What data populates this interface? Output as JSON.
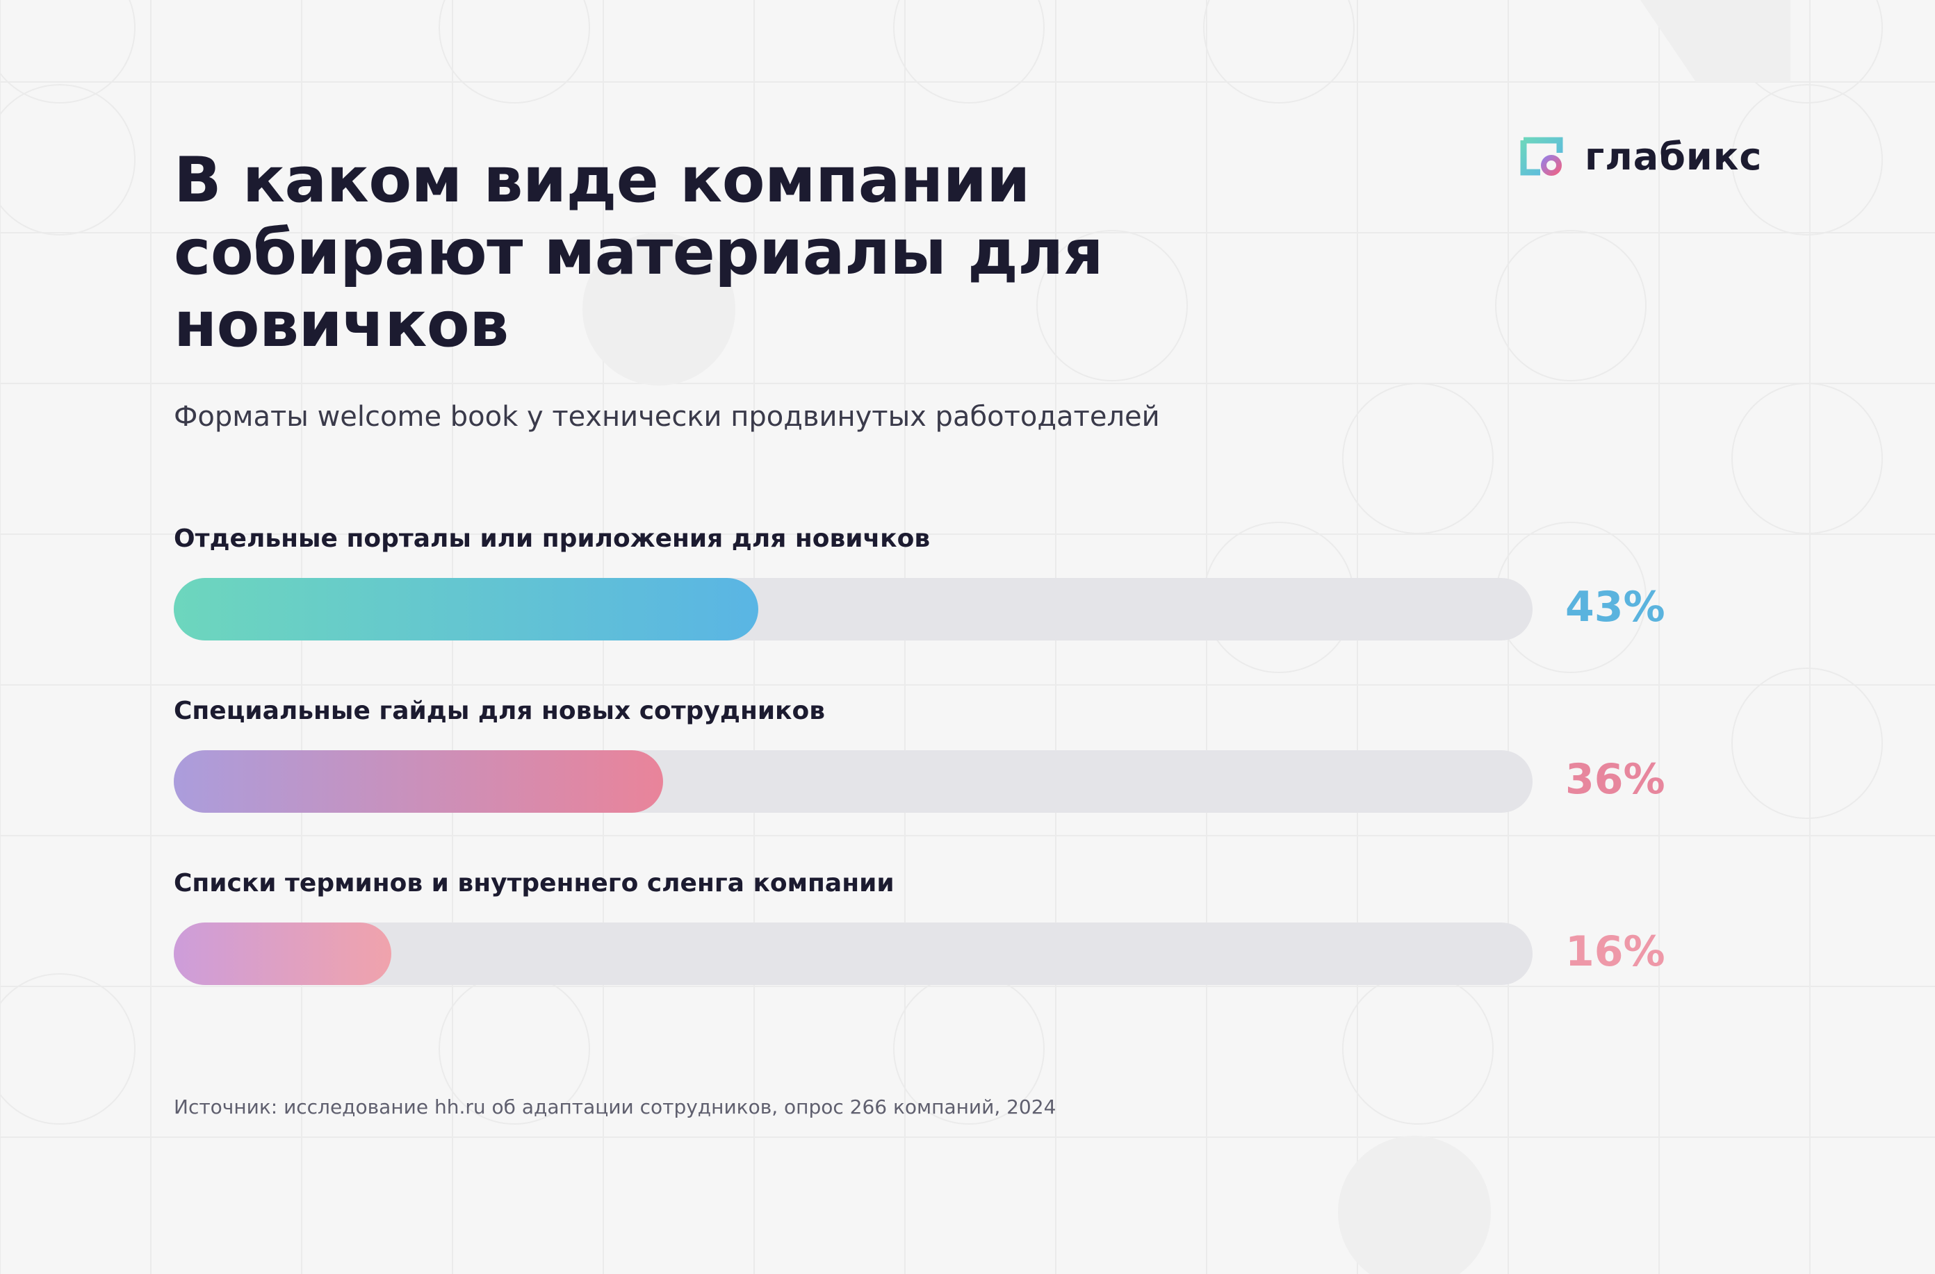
{
  "logo": {
    "text": "глабикс"
  },
  "title": "В каком виде компании собирают материалы для новичков",
  "subtitle": "Форматы welcome book у технически продвинутых работодателей",
  "source": "Источник: исследование hh.ru об адаптации сотрудников, опрос 266 компаний, 2024",
  "colors": {
    "background": "#f6f6f6",
    "text": "#1c1b30",
    "track": "#e4e4e8",
    "series": [
      "#5ab3de",
      "#e7869d",
      "#ee98a8"
    ]
  },
  "chart_data": {
    "type": "bar",
    "orientation": "horizontal",
    "categories": [
      "Отдельные порталы или приложения для новичков",
      "Специальные гайды для новых сотрудников",
      "Списки терминов и внутреннего сленга компании"
    ],
    "values": [
      43,
      36,
      16
    ],
    "value_labels": [
      "43%",
      "36%",
      "16%"
    ],
    "unit": "%",
    "xlim": [
      0,
      100
    ],
    "title": "В каком виде компании собирают материалы для новичков",
    "subtitle": "Форматы welcome book у технически продвинутых работодателей",
    "grid": false
  }
}
